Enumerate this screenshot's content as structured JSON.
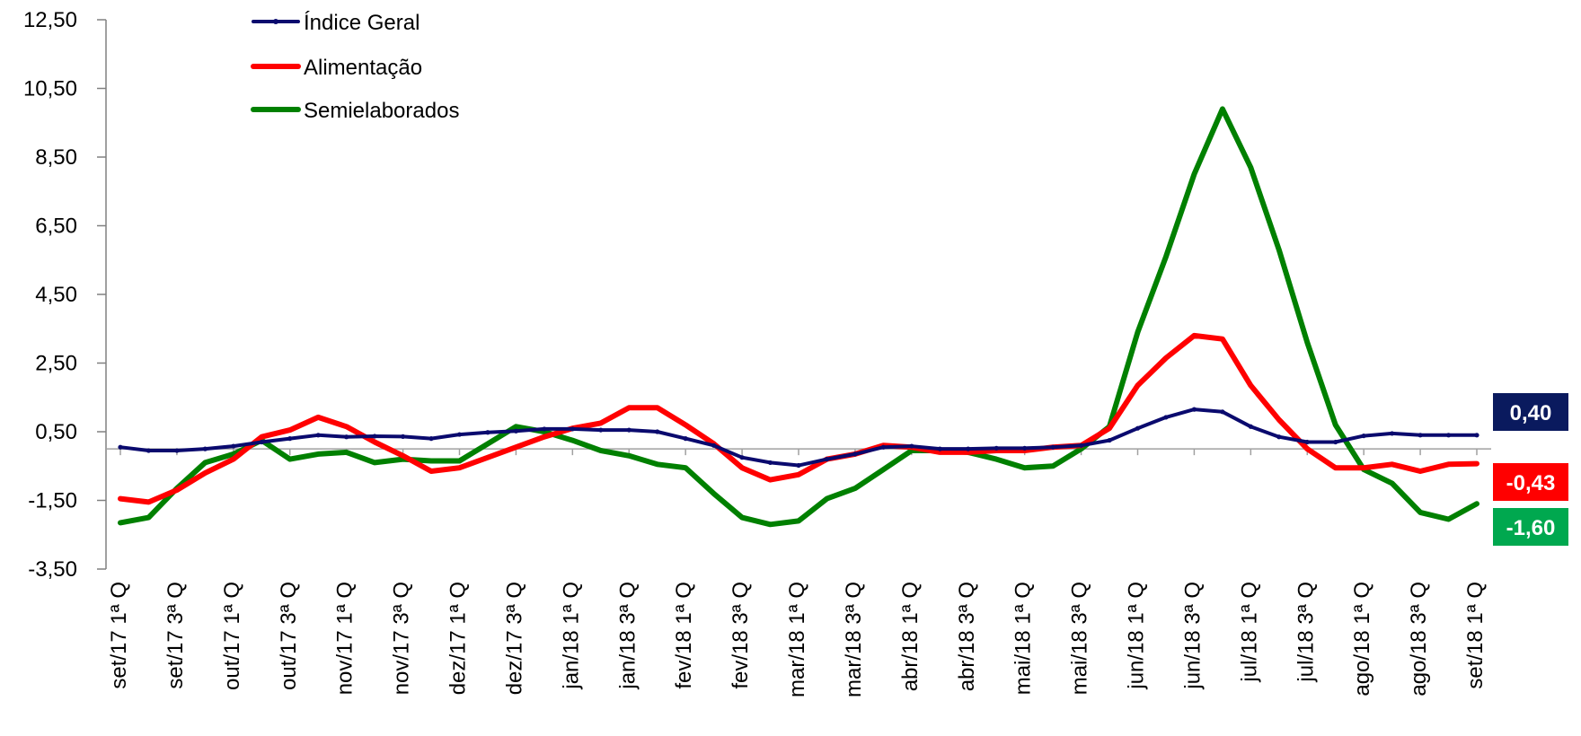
{
  "chart_data": {
    "type": "line",
    "title": "",
    "xlabel": "",
    "ylabel": "",
    "ylim": [
      -3.5,
      12.5
    ],
    "yticks": [
      "12,50",
      "10,50",
      "8,50",
      "6,50",
      "4,50",
      "2,50",
      "0,50",
      "-1,50",
      "-3,50"
    ],
    "ytick_values": [
      12.5,
      10.5,
      8.5,
      6.5,
      4.5,
      2.5,
      0.5,
      -1.5,
      -3.5
    ],
    "x_tick_labels": [
      "set/17 1ª Q",
      "set/17 3ª Q",
      "out/17 1ª Q",
      "out/17 3ª Q",
      "nov/17 1ª Q",
      "nov/17 3ª Q",
      "dez/17 1ª Q",
      "dez/17 3ª Q",
      "jan/18 1ª Q",
      "jan/18 3ª Q",
      "fev/18 1ª Q",
      "fev/18 3ª Q",
      "mar/18 1ª Q",
      "mar/18 3ª Q",
      "abr/18 1ª Q",
      "abr/18 3ª Q",
      "mai/18 1ª Q",
      "mai/18 3ª Q",
      "jun/18 1ª Q",
      "jun/18 3ª Q",
      "jul/18 1ª Q",
      "jul/18 3ª Q",
      "ago/18 1ª Q",
      "ago/18 3ª Q",
      "set/18 1ª Q"
    ],
    "legend_position": "top-left",
    "grid": false,
    "series": [
      {
        "name": "Índice Geral",
        "color": "#0a0a6e",
        "values": [
          0.05,
          -0.05,
          -0.05,
          0.0,
          0.08,
          0.2,
          0.3,
          0.4,
          0.35,
          0.37,
          0.36,
          0.3,
          0.42,
          0.48,
          0.52,
          0.58,
          0.58,
          0.55,
          0.55,
          0.5,
          0.3,
          0.1,
          -0.25,
          -0.4,
          -0.48,
          -0.3,
          -0.15,
          0.05,
          0.08,
          0.0,
          0.0,
          0.02,
          0.02,
          0.05,
          0.1,
          0.25,
          0.6,
          0.92,
          1.15,
          1.08,
          0.65,
          0.35,
          0.2,
          0.2,
          0.38,
          0.45,
          0.4,
          0.4,
          0.4
        ]
      },
      {
        "name": "Alimentação",
        "color": "#ff0000",
        "values": [
          -1.45,
          -1.55,
          -1.2,
          -0.7,
          -0.3,
          0.35,
          0.55,
          0.92,
          0.65,
          0.2,
          -0.2,
          -0.65,
          -0.55,
          -0.25,
          0.05,
          0.35,
          0.6,
          0.75,
          1.2,
          1.2,
          0.7,
          0.15,
          -0.55,
          -0.9,
          -0.75,
          -0.3,
          -0.15,
          0.1,
          0.05,
          -0.1,
          -0.1,
          -0.05,
          -0.05,
          0.05,
          0.1,
          0.6,
          1.85,
          2.65,
          3.3,
          3.2,
          1.85,
          0.85,
          0.0,
          -0.55,
          -0.55,
          -0.45,
          -0.65,
          -0.45,
          -0.43
        ]
      },
      {
        "name": "Semielaborados",
        "color": "#008000",
        "values": [
          -2.15,
          -2.0,
          -1.15,
          -0.4,
          -0.15,
          0.25,
          -0.3,
          -0.15,
          -0.1,
          -0.4,
          -0.3,
          -0.35,
          -0.35,
          0.15,
          0.65,
          0.5,
          0.25,
          -0.05,
          -0.2,
          -0.45,
          -0.55,
          -1.3,
          -2.0,
          -2.2,
          -2.1,
          -1.45,
          -1.15,
          -0.6,
          -0.05,
          -0.05,
          -0.1,
          -0.3,
          -0.55,
          -0.5,
          0.0,
          0.65,
          3.4,
          5.6,
          8.0,
          9.9,
          8.2,
          5.8,
          3.1,
          0.7,
          -0.6,
          -1.0,
          -1.85,
          -2.05,
          -1.6
        ]
      }
    ],
    "end_labels": [
      {
        "text": "0,40",
        "color": "#0a1a5e",
        "series": 0
      },
      {
        "text": "-0,43",
        "color": "#ff0000",
        "series": 1
      },
      {
        "text": "-1,60",
        "color": "#00a84f",
        "series": 2
      }
    ]
  }
}
